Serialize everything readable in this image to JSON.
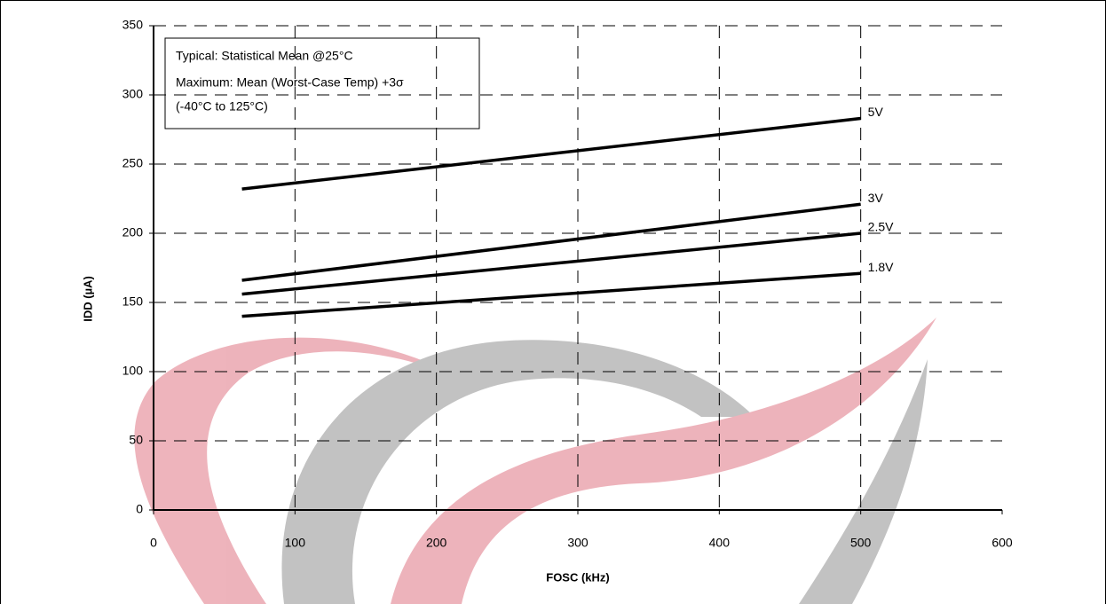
{
  "chart_data": {
    "type": "line",
    "annotations": [
      "Typical: Statistical Mean @25°C",
      "Maximum: Mean (Worst-Case Temp) +3σ",
      "(-40°C to 125°C)"
    ],
    "x_label": "FOSC (kHz)",
    "y_label": "IDD (µA)",
    "x": [
      62.5,
      500
    ],
    "series": [
      {
        "name": "5V",
        "color": "#000000",
        "values": [
          232,
          283
        ]
      },
      {
        "name": "3V",
        "color": "#000000",
        "values": [
          166,
          221
        ]
      },
      {
        "name": "2.5V",
        "color": "#000000",
        "values": [
          156,
          200
        ]
      },
      {
        "name": "1.8V",
        "color": "#000000",
        "values": [
          140,
          171
        ]
      }
    ],
    "xlim": [
      0,
      600
    ],
    "xticks": [
      0,
      100,
      200,
      300,
      400,
      500,
      600
    ],
    "ylim": [
      0,
      350
    ],
    "yticks": [
      0,
      50,
      100,
      150,
      200,
      250,
      300,
      350
    ],
    "grid": true
  }
}
